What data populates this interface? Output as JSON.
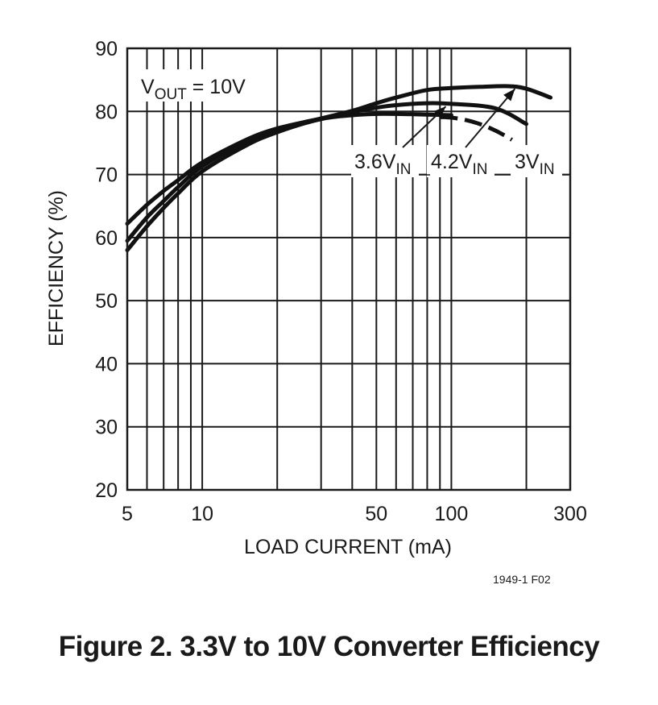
{
  "chart_data": {
    "type": "line",
    "xscale": "log",
    "xlim": [
      5,
      300
    ],
    "ylim": [
      20,
      90
    ],
    "xlabel": "LOAD CURRENT (mA)",
    "ylabel": "EFFICIENCY (%)",
    "x_tick_labels": [
      {
        "value": 5,
        "label": "5"
      },
      {
        "value": 10,
        "label": "10"
      },
      {
        "value": 50,
        "label": "50"
      },
      {
        "value": 100,
        "label": "100"
      },
      {
        "value": 300,
        "label": "300"
      }
    ],
    "x_gridlines": [
      5,
      6,
      7,
      8,
      9,
      10,
      20,
      30,
      40,
      50,
      60,
      70,
      80,
      90,
      100,
      200,
      300
    ],
    "y_ticks": [
      20,
      30,
      40,
      50,
      60,
      70,
      80,
      90
    ],
    "grid": true,
    "annotation_condition": {
      "main": "V",
      "sub": "OUT",
      "rest": " = 10V"
    },
    "series": [
      {
        "name": "3V",
        "label_main": "3V",
        "label_sub": "IN",
        "style": "dashed",
        "x": [
          5,
          6,
          7,
          8,
          10,
          15,
          20,
          30,
          40,
          50,
          60,
          80,
          100
        ],
        "y": [
          58,
          61.8,
          64.7,
          67,
          70.5,
          74.6,
          76.7,
          78.8,
          79.4,
          79.6,
          79.6,
          79.5,
          79.4
        ],
        "dash_from": 90,
        "dash_to": 175
      },
      {
        "name": "3.6V",
        "label_main": "3.6V",
        "label_sub": "IN",
        "style": "solid",
        "x": [
          5,
          6,
          7,
          8,
          10,
          15,
          20,
          30,
          40,
          50,
          60,
          80,
          100,
          150,
          200
        ],
        "y": [
          59.5,
          63.2,
          65.8,
          68,
          71.3,
          75.2,
          77.1,
          78.8,
          79.9,
          80.6,
          81,
          81.3,
          81.2,
          80.5,
          78
        ]
      },
      {
        "name": "4.2V",
        "label_main": "4.2V",
        "label_sub": "IN",
        "style": "solid",
        "x": [
          5,
          6,
          7,
          8,
          10,
          15,
          20,
          30,
          40,
          50,
          60,
          80,
          100,
          130,
          170,
          200,
          250
        ],
        "y": [
          62.2,
          65.2,
          67.4,
          69.1,
          71.9,
          75.5,
          77.3,
          78.9,
          80.1,
          81.3,
          82.2,
          83.4,
          83.7,
          83.9,
          84,
          83.6,
          82.2
        ]
      }
    ],
    "callouts": [
      {
        "series": "3.6V",
        "text_main": "3.6V",
        "text_sub": "IN",
        "arrow_to": {
          "x": 95,
          "y": 81.3
        }
      },
      {
        "series": "4.2V",
        "text_main": "4.2V",
        "text_sub": "IN",
        "arrow_to": {
          "x": 180,
          "y": 84.1
        }
      },
      {
        "series": "3V",
        "text_main": "3V",
        "text_sub": "IN",
        "arrow_to": null
      }
    ]
  },
  "figure_code": "1949-1 F02",
  "caption": "Figure 2. 3.3V to 10V Converter Efficiency"
}
